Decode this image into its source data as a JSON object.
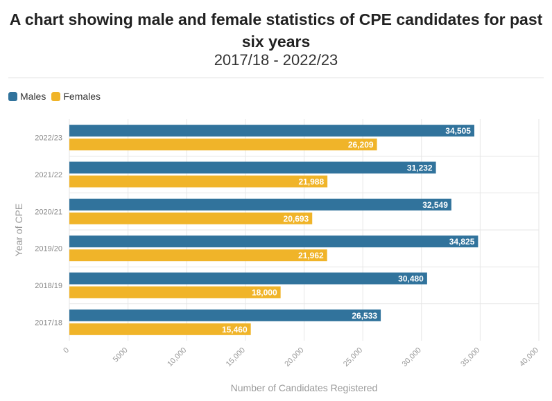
{
  "header": {
    "title": "A chart showing male and female statistics of CPE candidates for past six years",
    "subtitle": "2017/18 - 2022/23"
  },
  "legend": {
    "items": [
      {
        "label": "Males",
        "color": "#31739c"
      },
      {
        "label": "Females",
        "color": "#f0b429"
      }
    ]
  },
  "chart_data": {
    "type": "bar",
    "orientation": "horizontal",
    "title": "A chart showing male and female statistics of CPE candidates for past six years",
    "subtitle": "2017/18 - 2022/23",
    "xlabel": "Number of Candidates Registered",
    "ylabel": "Year of CPE",
    "xlim": [
      0,
      40000
    ],
    "x_ticks": [
      "0",
      "5000",
      "10,000",
      "15,000",
      "20,000",
      "25,000",
      "30,000",
      "35,000",
      "40,000"
    ],
    "grid": true,
    "legend_position": "top-left",
    "categories": [
      "2022/23",
      "2021/22",
      "2020/21",
      "2019/20",
      "2018/19",
      "2017/18"
    ],
    "series": [
      {
        "name": "Males",
        "color": "#31739c",
        "values": [
          34505,
          31232,
          32549,
          34825,
          30480,
          26533
        ],
        "labels": [
          "34,505",
          "31,232",
          "32,549",
          "34,825",
          "30,480",
          "26,533"
        ]
      },
      {
        "name": "Females",
        "color": "#f0b429",
        "values": [
          26209,
          21988,
          20693,
          21962,
          18000,
          15460
        ],
        "labels": [
          "26,209",
          "21,988",
          "20,693",
          "21,962",
          "18,000",
          "15,460"
        ]
      }
    ]
  }
}
